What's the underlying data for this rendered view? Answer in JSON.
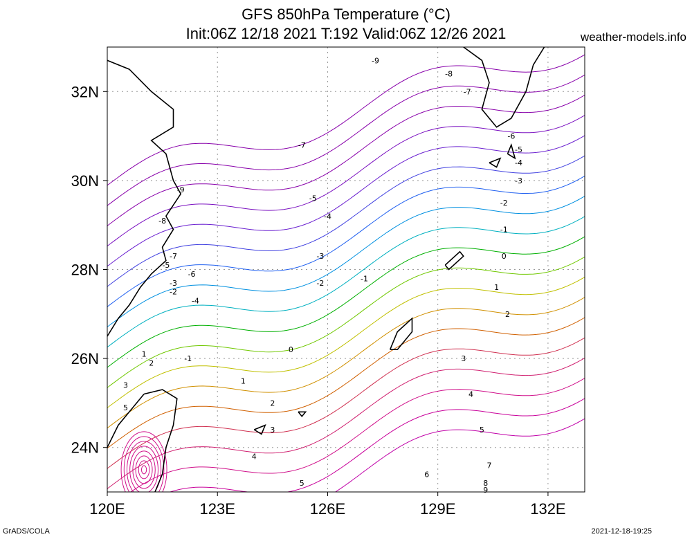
{
  "title_line1": "GFS 850hPa Temperature (°C)",
  "title_line2": "Init:06Z 12/18 2021 T:192 Valid:06Z 12/26 2021",
  "site": "weather-models.info",
  "footer_left": "GrADS/COLA",
  "footer_right": "2021-12-18-19:25",
  "map": {
    "lon_range": [
      120,
      133
    ],
    "lat_range": [
      23,
      33
    ],
    "lon_ticks": [
      "120E",
      "123E",
      "126E",
      "129E",
      "132E"
    ],
    "lat_ticks": [
      "32N",
      "30N",
      "28N",
      "26N",
      "24N"
    ],
    "grid": true
  },
  "contour_labels": [
    {
      "text": "-9",
      "lon": 127.3,
      "lat": 32.7
    },
    {
      "text": "-8",
      "lon": 129.3,
      "lat": 32.4
    },
    {
      "text": "-7",
      "lon": 129.8,
      "lat": 32.0
    },
    {
      "text": "-7",
      "lon": 125.3,
      "lat": 30.8
    },
    {
      "text": "-6",
      "lon": 131.0,
      "lat": 31.0
    },
    {
      "text": "-5",
      "lon": 131.2,
      "lat": 30.7
    },
    {
      "text": "-4",
      "lon": 131.2,
      "lat": 30.4
    },
    {
      "text": "-3",
      "lon": 131.2,
      "lat": 30.0
    },
    {
      "text": "-2",
      "lon": 130.8,
      "lat": 29.5
    },
    {
      "text": "-1",
      "lon": 130.8,
      "lat": 28.9
    },
    {
      "text": "0",
      "lon": 130.8,
      "lat": 28.3
    },
    {
      "text": "1",
      "lon": 130.6,
      "lat": 27.6
    },
    {
      "text": "2",
      "lon": 130.9,
      "lat": 27.0
    },
    {
      "text": "3",
      "lon": 129.7,
      "lat": 26.0
    },
    {
      "text": "4",
      "lon": 129.9,
      "lat": 25.2
    },
    {
      "text": "5",
      "lon": 130.2,
      "lat": 24.4
    },
    {
      "text": "6",
      "lon": 128.7,
      "lat": 23.4
    },
    {
      "text": "7",
      "lon": 130.4,
      "lat": 23.6
    },
    {
      "text": "8",
      "lon": 130.3,
      "lat": 23.2
    },
    {
      "text": "9",
      "lon": 130.3,
      "lat": 23.05
    },
    {
      "text": "-5",
      "lon": 125.6,
      "lat": 29.6
    },
    {
      "text": "-4",
      "lon": 126.0,
      "lat": 29.2
    },
    {
      "text": "-3",
      "lon": 125.8,
      "lat": 28.3
    },
    {
      "text": "-2",
      "lon": 125.8,
      "lat": 27.7
    },
    {
      "text": "-1",
      "lon": 127.0,
      "lat": 27.8
    },
    {
      "text": "0",
      "lon": 125.0,
      "lat": 26.2
    },
    {
      "text": "1",
      "lon": 123.7,
      "lat": 25.5
    },
    {
      "text": "2",
      "lon": 124.5,
      "lat": 25.0
    },
    {
      "text": "3",
      "lon": 124.5,
      "lat": 24.4
    },
    {
      "text": "4",
      "lon": 124.0,
      "lat": 23.8
    },
    {
      "text": "5",
      "lon": 125.3,
      "lat": 23.2
    },
    {
      "text": "-9",
      "lon": 122.0,
      "lat": 29.8
    },
    {
      "text": "-8",
      "lon": 121.5,
      "lat": 29.1
    },
    {
      "text": "-7",
      "lon": 121.8,
      "lat": 28.3
    },
    {
      "text": "-6",
      "lon": 122.3,
      "lat": 27.9
    },
    {
      "text": "-5",
      "lon": 121.6,
      "lat": 28.1
    },
    {
      "text": "-4",
      "lon": 122.4,
      "lat": 27.3
    },
    {
      "text": "-3",
      "lon": 121.8,
      "lat": 27.7
    },
    {
      "text": "-2",
      "lon": 121.8,
      "lat": 27.5
    },
    {
      "text": "-1",
      "lon": 122.2,
      "lat": 26.0
    },
    {
      "text": "1",
      "lon": 121.0,
      "lat": 26.1
    },
    {
      "text": "2",
      "lon": 121.2,
      "lat": 25.9
    },
    {
      "text": "3",
      "lon": 120.5,
      "lat": 25.4
    },
    {
      "text": "5",
      "lon": 120.5,
      "lat": 24.9
    }
  ]
}
